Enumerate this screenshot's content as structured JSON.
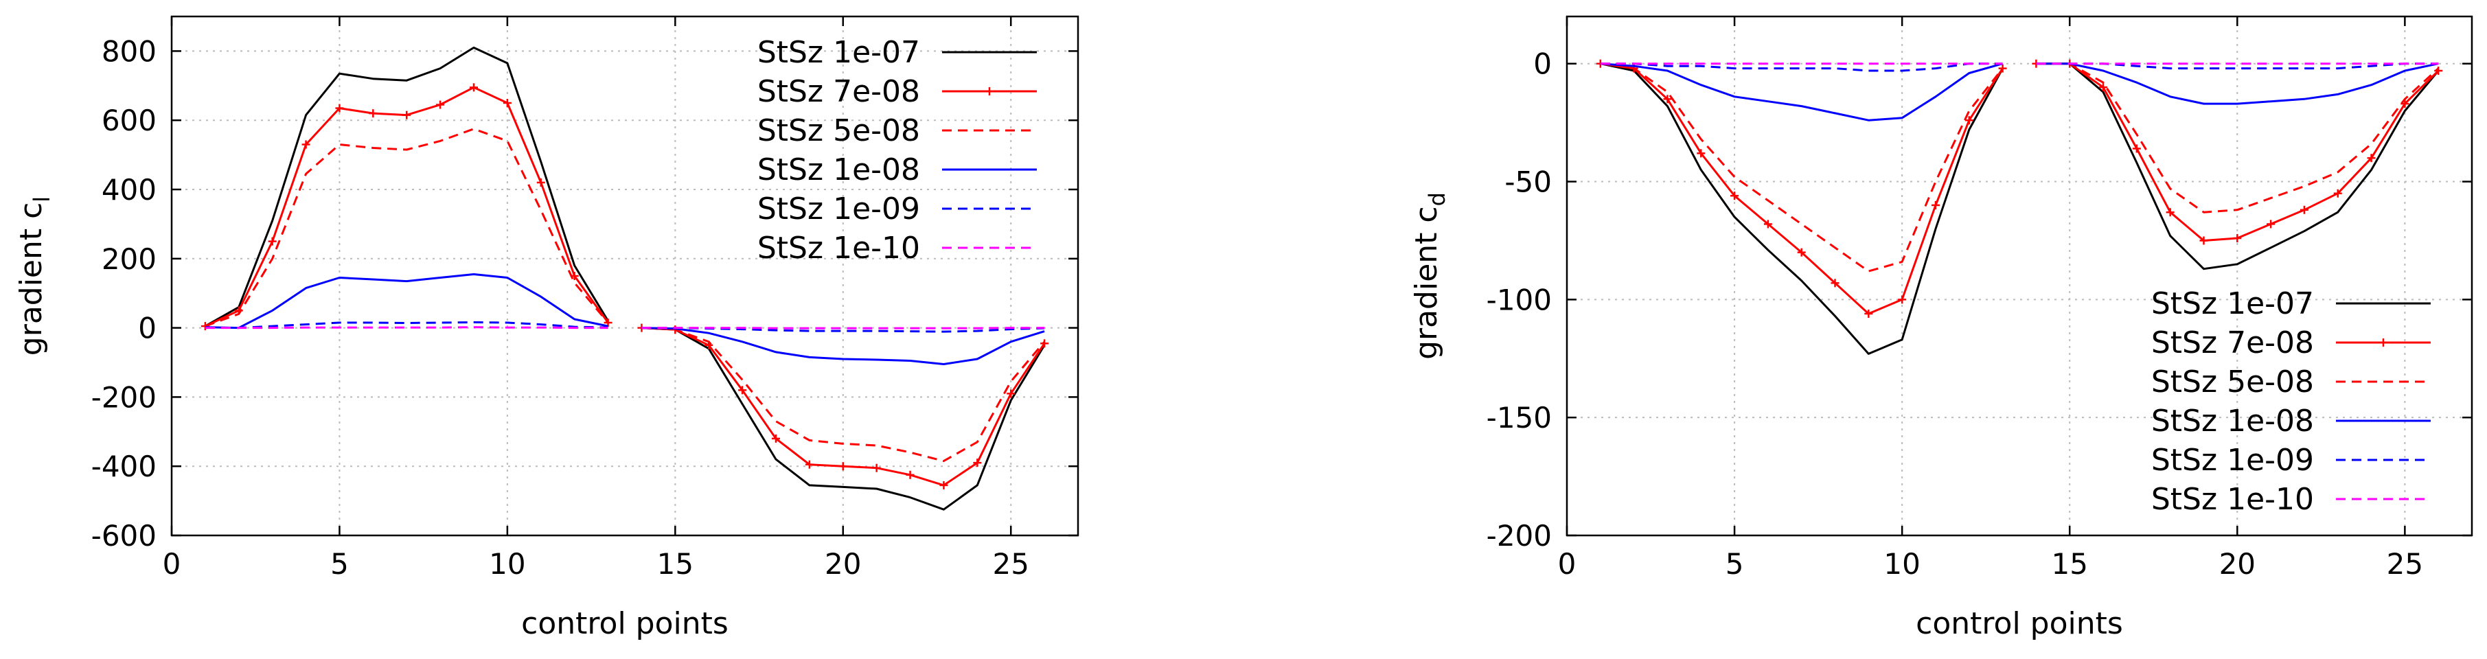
{
  "chart_data": [
    {
      "type": "line",
      "xlabel": "control points",
      "ylabel": "gradient c",
      "ylabel_sub": "l",
      "xlim": [
        0,
        27
      ],
      "ylim": [
        -600,
        900
      ],
      "xticks": [
        0,
        5,
        10,
        15,
        20,
        25
      ],
      "yticks": [
        -600,
        -400,
        -200,
        0,
        200,
        400,
        600,
        800
      ],
      "grid": true,
      "legend_position": "top-right",
      "segments": [
        [
          1,
          13
        ],
        [
          14,
          26
        ]
      ],
      "x": [
        1,
        2,
        3,
        4,
        5,
        6,
        7,
        8,
        9,
        10,
        11,
        12,
        13,
        14,
        15,
        16,
        17,
        18,
        19,
        20,
        21,
        22,
        23,
        24,
        25,
        26
      ],
      "series": [
        {
          "name": "StSz 1e-07",
          "color": "#000000",
          "dash": "solid",
          "marker": false,
          "values": [
            5,
            60,
            310,
            615,
            735,
            720,
            715,
            750,
            810,
            765,
            480,
            180,
            20,
            0,
            -5,
            -60,
            -220,
            -380,
            -455,
            -460,
            -465,
            -490,
            -525,
            -455,
            -210,
            -50
          ]
        },
        {
          "name": "StSz 7e-08",
          "color": "#ff0000",
          "dash": "solid",
          "marker": true,
          "values": [
            5,
            50,
            250,
            530,
            635,
            620,
            615,
            645,
            695,
            650,
            420,
            150,
            15,
            0,
            -5,
            -50,
            -180,
            -320,
            -395,
            -400,
            -405,
            -425,
            -455,
            -390,
            -190,
            -45
          ]
        },
        {
          "name": "StSz 5e-08",
          "color": "#ff0000",
          "dash": "dashed",
          "marker": false,
          "values": [
            5,
            40,
            200,
            445,
            530,
            520,
            515,
            540,
            575,
            540,
            340,
            130,
            15,
            0,
            -5,
            -40,
            -150,
            -270,
            -325,
            -335,
            -340,
            -360,
            -385,
            -330,
            -155,
            -40
          ]
        },
        {
          "name": "StSz 1e-08",
          "color": "#0000ff",
          "dash": "solid",
          "marker": false,
          "values": [
            2,
            0,
            50,
            115,
            145,
            140,
            135,
            145,
            155,
            145,
            90,
            25,
            5,
            0,
            -2,
            -15,
            -40,
            -70,
            -85,
            -90,
            -92,
            -95,
            -105,
            -90,
            -40,
            -10
          ]
        },
        {
          "name": "StSz 1e-09",
          "color": "#0000ff",
          "dash": "dashed",
          "marker": false,
          "values": [
            1,
            0,
            5,
            10,
            15,
            15,
            14,
            15,
            16,
            15,
            10,
            3,
            1,
            0,
            0,
            -2,
            -4,
            -7,
            -9,
            -9,
            -9,
            -10,
            -11,
            -9,
            -4,
            -1
          ]
        },
        {
          "name": "StSz 1e-10",
          "color": "#ff00ff",
          "dash": "dashed",
          "marker": false,
          "values": [
            0,
            0,
            0,
            1,
            1,
            1,
            1,
            1,
            2,
            1,
            1,
            0,
            0,
            0,
            0,
            0,
            0,
            -1,
            -1,
            -1,
            -1,
            -1,
            -1,
            -1,
            0,
            0
          ]
        }
      ]
    },
    {
      "type": "line",
      "xlabel": "control points",
      "ylabel": "gradient c",
      "ylabel_sub": "d",
      "xlim": [
        0,
        27
      ],
      "ylim": [
        -200,
        20
      ],
      "xticks": [
        0,
        5,
        10,
        15,
        20,
        25
      ],
      "yticks": [
        -200,
        -150,
        -100,
        -50,
        0
      ],
      "grid": true,
      "legend_position": "bottom-right",
      "segments": [
        [
          1,
          13
        ],
        [
          14,
          26
        ]
      ],
      "x": [
        1,
        2,
        3,
        4,
        5,
        6,
        7,
        8,
        9,
        10,
        11,
        12,
        13,
        14,
        15,
        16,
        17,
        18,
        19,
        20,
        21,
        22,
        23,
        24,
        25,
        26
      ],
      "series": [
        {
          "name": "StSz 1e-07",
          "color": "#000000",
          "dash": "solid",
          "marker": false,
          "values": [
            0,
            -3,
            -18,
            -45,
            -65,
            -79,
            -92,
            -107,
            -123,
            -117,
            -70,
            -28,
            -2,
            0,
            0,
            -12,
            -42,
            -73,
            -87,
            -85,
            -78,
            -71,
            -63,
            -45,
            -20,
            -3
          ]
        },
        {
          "name": "StSz 7e-08",
          "color": "#ff0000",
          "dash": "solid",
          "marker": true,
          "values": [
            0,
            -2,
            -15,
            -38,
            -56,
            -68,
            -80,
            -93,
            -106,
            -100,
            -60,
            -24,
            -2,
            0,
            0,
            -10,
            -36,
            -63,
            -75,
            -74,
            -68,
            -62,
            -55,
            -40,
            -17,
            -3
          ]
        },
        {
          "name": "StSz 5e-08",
          "color": "#ff0000",
          "dash": "dashed",
          "marker": false,
          "values": [
            0,
            -2,
            -12,
            -32,
            -48,
            -58,
            -68,
            -78,
            -88,
            -84,
            -50,
            -20,
            -2,
            0,
            0,
            -8,
            -30,
            -53,
            -63,
            -62,
            -57,
            -52,
            -46,
            -34,
            -15,
            -2
          ]
        },
        {
          "name": "StSz 1e-08",
          "color": "#0000ff",
          "dash": "solid",
          "marker": false,
          "values": [
            0,
            -1,
            -3,
            -9,
            -14,
            -16,
            -18,
            -21,
            -24,
            -23,
            -14,
            -4,
            0,
            0,
            0,
            -3,
            -8,
            -14,
            -17,
            -17,
            -16,
            -15,
            -13,
            -9,
            -3,
            0
          ]
        },
        {
          "name": "StSz 1e-09",
          "color": "#0000ff",
          "dash": "dashed",
          "marker": false,
          "values": [
            0,
            0,
            -1,
            -1,
            -2,
            -2,
            -2,
            -2,
            -3,
            -3,
            -2,
            0,
            0,
            0,
            0,
            0,
            -1,
            -2,
            -2,
            -2,
            -2,
            -2,
            -2,
            -1,
            0,
            0
          ]
        },
        {
          "name": "StSz 1e-10",
          "color": "#ff00ff",
          "dash": "dashed",
          "marker": false,
          "values": [
            0,
            0,
            0,
            0,
            0,
            0,
            0,
            0,
            0,
            0,
            0,
            0,
            0,
            0,
            0,
            0,
            0,
            0,
            0,
            0,
            0,
            0,
            0,
            0,
            0,
            0
          ]
        }
      ]
    }
  ]
}
